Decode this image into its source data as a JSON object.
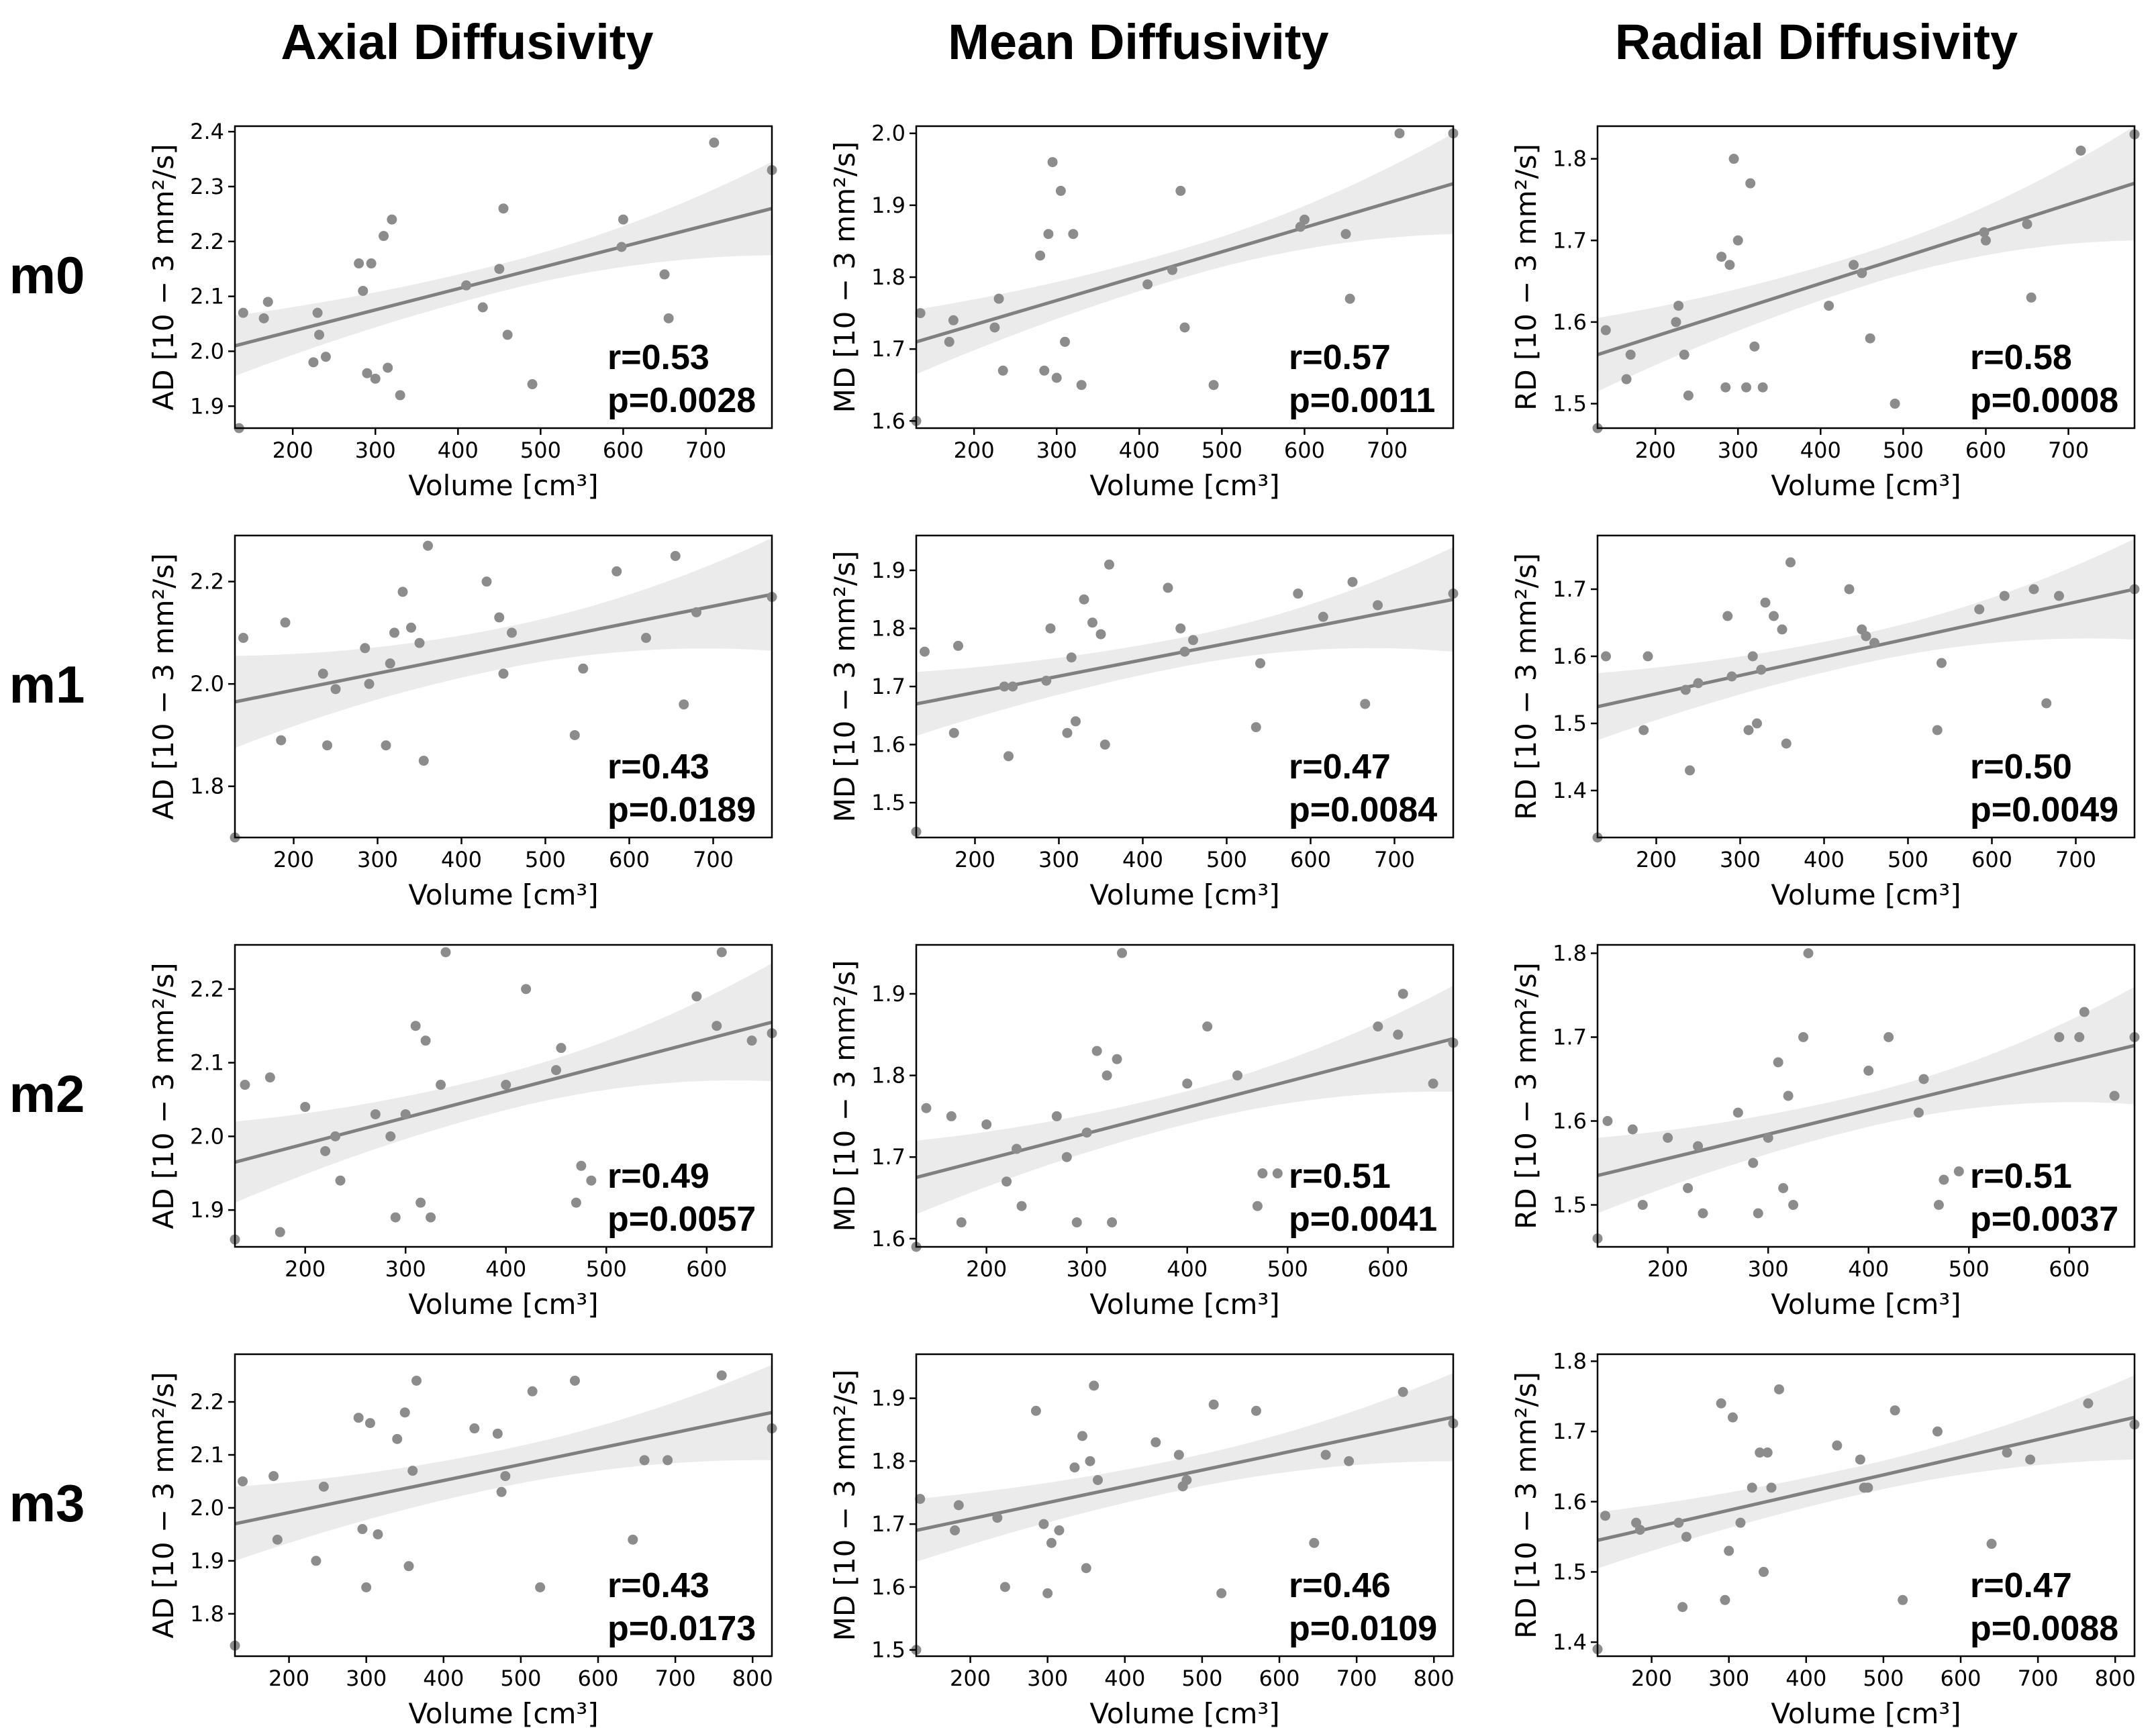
{
  "column_titles": [
    "Axial Diffusivity",
    "Mean Diffusivity",
    "Radial Diffusivity"
  ],
  "row_labels": [
    "m0",
    "m1",
    "m2",
    "m3"
  ],
  "colors": {
    "point": "#8c8c8c",
    "line": "#808080",
    "band": "#ebebeb",
    "axes": "#000000"
  },
  "chart_data": [
    {
      "id": "m0-AD",
      "type": "scatter",
      "title": "",
      "ylabel": "AD [10 − 3  mm²/s]",
      "xlabel": "Volume [cm³]",
      "xlim": [
        130,
        780
      ],
      "ylim": [
        1.86,
        2.41
      ],
      "xticks": [
        200,
        300,
        400,
        500,
        600,
        700
      ],
      "yticks": [
        1.9,
        2.0,
        2.1,
        2.2,
        2.3,
        2.4
      ],
      "ytick_labels": [
        "1.9",
        "2.0",
        "2.1",
        "2.2",
        "2.3",
        "2.4"
      ],
      "x": [
        135,
        140,
        165,
        170,
        225,
        230,
        232,
        240,
        280,
        285,
        290,
        295,
        300,
        310,
        315,
        320,
        330,
        410,
        430,
        450,
        455,
        460,
        490,
        598,
        600,
        650,
        655,
        710,
        780
      ],
      "y": [
        1.86,
        2.07,
        2.06,
        2.09,
        1.98,
        2.07,
        2.03,
        1.99,
        2.16,
        2.11,
        1.96,
        2.16,
        1.95,
        2.21,
        1.97,
        2.24,
        1.92,
        2.12,
        2.08,
        2.15,
        2.26,
        2.03,
        1.94,
        2.19,
        2.24,
        2.14,
        2.06,
        2.38,
        2.33
      ],
      "r": "r=0.53",
      "p": "p=0.0028",
      "fit": {
        "x": [
          130,
          780
        ],
        "y": [
          2.01,
          2.26
        ]
      },
      "ci_width": [
        0.055,
        0.025,
        0.085
      ]
    },
    {
      "id": "m0-MD",
      "type": "scatter",
      "title": "",
      "ylabel": "MD [10 − 3  mm²/s]",
      "xlabel": "Volume [cm³]",
      "xlim": [
        130,
        780
      ],
      "ylim": [
        1.59,
        2.01
      ],
      "xticks": [
        200,
        300,
        400,
        500,
        600,
        700
      ],
      "yticks": [
        1.6,
        1.7,
        1.8,
        1.9,
        2.0
      ],
      "ytick_labels": [
        "1.6",
        "1.7",
        "1.8",
        "1.9",
        "2.0"
      ],
      "x": [
        130,
        135,
        170,
        175,
        225,
        230,
        235,
        280,
        285,
        290,
        295,
        300,
        305,
        310,
        320,
        330,
        410,
        440,
        450,
        455,
        490,
        595,
        600,
        650,
        655,
        715,
        780
      ],
      "y": [
        1.6,
        1.75,
        1.71,
        1.74,
        1.73,
        1.77,
        1.67,
        1.83,
        1.67,
        1.86,
        1.96,
        1.66,
        1.92,
        1.71,
        1.86,
        1.65,
        1.79,
        1.81,
        1.92,
        1.73,
        1.65,
        1.87,
        1.88,
        1.86,
        1.77,
        2.0,
        2.0
      ],
      "r": "r=0.57",
      "p": "p=0.0011",
      "fit": {
        "x": [
          130,
          780
        ],
        "y": [
          1.71,
          1.93
        ]
      },
      "ci_width": [
        0.045,
        0.02,
        0.07
      ]
    },
    {
      "id": "m0-RD",
      "type": "scatter",
      "title": "",
      "ylabel": "RD [10 − 3  mm²/s]",
      "xlabel": "Volume [cm³]",
      "xlim": [
        130,
        780
      ],
      "ylim": [
        1.47,
        1.84
      ],
      "xticks": [
        200,
        300,
        400,
        500,
        600,
        700
      ],
      "yticks": [
        1.5,
        1.6,
        1.7,
        1.8
      ],
      "ytick_labels": [
        "1.5",
        "1.6",
        "1.7",
        "1.8"
      ],
      "x": [
        130,
        140,
        165,
        170,
        225,
        228,
        235,
        240,
        280,
        285,
        290,
        295,
        300,
        310,
        315,
        320,
        330,
        410,
        440,
        450,
        460,
        490,
        598,
        600,
        650,
        655,
        715,
        780
      ],
      "y": [
        1.47,
        1.59,
        1.53,
        1.56,
        1.6,
        1.62,
        1.56,
        1.51,
        1.68,
        1.52,
        1.67,
        1.8,
        1.7,
        1.52,
        1.77,
        1.57,
        1.52,
        1.62,
        1.67,
        1.66,
        1.58,
        1.5,
        1.71,
        1.7,
        1.72,
        1.63,
        1.81,
        1.83
      ],
      "r": "r=0.58",
      "p": "p=0.0008",
      "fit": {
        "x": [
          130,
          780
        ],
        "y": [
          1.56,
          1.77
        ]
      },
      "ci_width": [
        0.045,
        0.02,
        0.07
      ]
    },
    {
      "id": "m1-AD",
      "type": "scatter",
      "title": "",
      "ylabel": "AD [10 − 3  mm²/s]",
      "xlabel": "Volume [cm³]",
      "xlim": [
        130,
        770
      ],
      "ylim": [
        1.7,
        2.29
      ],
      "xticks": [
        200,
        300,
        400,
        500,
        600,
        700
      ],
      "yticks": [
        1.8,
        2.0,
        2.2
      ],
      "ytick_labels": [
        "1.8",
        "2.0",
        "2.2"
      ],
      "x": [
        130,
        140,
        185,
        190,
        235,
        240,
        250,
        285,
        290,
        310,
        315,
        320,
        330,
        340,
        350,
        355,
        360,
        430,
        445,
        450,
        460,
        535,
        545,
        585,
        620,
        655,
        665,
        680,
        770
      ],
      "y": [
        1.7,
        2.09,
        1.89,
        2.12,
        2.02,
        1.88,
        1.99,
        2.07,
        2.0,
        1.88,
        2.04,
        2.1,
        2.18,
        2.11,
        2.08,
        1.85,
        2.27,
        2.2,
        2.13,
        2.02,
        2.1,
        1.9,
        2.03,
        2.22,
        2.09,
        2.25,
        1.96,
        2.14,
        2.17
      ],
      "r": "r=0.43",
      "p": "p=0.0189",
      "fit": {
        "x": [
          130,
          770
        ],
        "y": [
          1.965,
          2.175
        ]
      },
      "ci_width": [
        0.09,
        0.04,
        0.11
      ]
    },
    {
      "id": "m1-MD",
      "type": "scatter",
      "title": "",
      "ylabel": "MD [10 − 3  mm²/s]",
      "xlabel": "Volume [cm³]",
      "xlim": [
        130,
        770
      ],
      "ylim": [
        1.44,
        1.96
      ],
      "xticks": [
        200,
        300,
        400,
        500,
        600,
        700
      ],
      "yticks": [
        1.5,
        1.6,
        1.7,
        1.8,
        1.9
      ],
      "ytick_labels": [
        "1.5",
        "1.6",
        "1.7",
        "1.8",
        "1.9"
      ],
      "x": [
        130,
        140,
        175,
        180,
        235,
        240,
        245,
        285,
        290,
        310,
        315,
        320,
        330,
        340,
        350,
        355,
        360,
        430,
        445,
        450,
        460,
        535,
        540,
        585,
        615,
        650,
        665,
        680,
        770
      ],
      "y": [
        1.45,
        1.76,
        1.62,
        1.77,
        1.7,
        1.58,
        1.7,
        1.71,
        1.8,
        1.62,
        1.75,
        1.64,
        1.85,
        1.81,
        1.79,
        1.6,
        1.91,
        1.87,
        1.8,
        1.76,
        1.78,
        1.63,
        1.74,
        1.86,
        1.82,
        1.88,
        1.67,
        1.84,
        1.86
      ],
      "r": "r=0.47",
      "p": "p=0.0084",
      "fit": {
        "x": [
          130,
          770
        ],
        "y": [
          1.67,
          1.85
        ]
      },
      "ci_width": [
        0.055,
        0.025,
        0.09
      ]
    },
    {
      "id": "m1-RD",
      "type": "scatter",
      "title": "",
      "ylabel": "RD [10 − 3  mm²/s]",
      "xlabel": "Volume [cm³]",
      "xlim": [
        130,
        770
      ],
      "ylim": [
        1.33,
        1.78
      ],
      "xticks": [
        200,
        300,
        400,
        500,
        600,
        700
      ],
      "yticks": [
        1.4,
        1.5,
        1.6,
        1.7
      ],
      "ytick_labels": [
        "1.4",
        "1.5",
        "1.6",
        "1.7"
      ],
      "x": [
        130,
        140,
        185,
        190,
        235,
        240,
        250,
        285,
        290,
        310,
        315,
        320,
        325,
        330,
        340,
        350,
        355,
        360,
        430,
        445,
        450,
        460,
        535,
        540,
        585,
        615,
        650,
        665,
        680,
        770
      ],
      "y": [
        1.33,
        1.6,
        1.49,
        1.6,
        1.55,
        1.43,
        1.56,
        1.66,
        1.57,
        1.49,
        1.6,
        1.5,
        1.58,
        1.68,
        1.66,
        1.64,
        1.47,
        1.74,
        1.7,
        1.64,
        1.63,
        1.62,
        1.49,
        1.59,
        1.67,
        1.69,
        1.7,
        1.53,
        1.69,
        1.7
      ],
      "r": "r=0.50",
      "p": "p=0.0049",
      "fit": {
        "x": [
          130,
          770
        ],
        "y": [
          1.525,
          1.7
        ]
      },
      "ci_width": [
        0.05,
        0.022,
        0.075
      ]
    },
    {
      "id": "m2-AD",
      "type": "scatter",
      "title": "",
      "ylabel": "AD [10 − 3  mm²/s]",
      "xlabel": "Volume [cm³]",
      "xlim": [
        130,
        665
      ],
      "ylim": [
        1.85,
        2.26
      ],
      "xticks": [
        200,
        300,
        400,
        500,
        600
      ],
      "yticks": [
        1.9,
        2.0,
        2.1,
        2.2
      ],
      "ytick_labels": [
        "1.9",
        "2.0",
        "2.1",
        "2.2"
      ],
      "x": [
        130,
        140,
        165,
        175,
        200,
        220,
        230,
        235,
        270,
        285,
        290,
        300,
        310,
        315,
        320,
        325,
        335,
        340,
        400,
        420,
        450,
        455,
        470,
        475,
        485,
        590,
        610,
        615,
        645,
        665
      ],
      "y": [
        1.86,
        2.07,
        2.08,
        1.87,
        2.04,
        1.98,
        2.0,
        1.94,
        2.03,
        2.0,
        1.89,
        2.03,
        2.15,
        1.91,
        2.13,
        1.89,
        2.07,
        2.25,
        2.07,
        2.2,
        2.09,
        2.12,
        1.91,
        1.96,
        1.94,
        2.19,
        2.15,
        2.25,
        2.13,
        2.14
      ],
      "r": "r=0.49",
      "p": "p=0.0057",
      "fit": {
        "x": [
          130,
          665
        ],
        "y": [
          1.965,
          2.155
        ]
      },
      "ci_width": [
        0.055,
        0.025,
        0.08
      ]
    },
    {
      "id": "m2-MD",
      "type": "scatter",
      "title": "",
      "ylabel": "MD [10 − 3  mm²/s]",
      "xlabel": "Volume [cm³]",
      "xlim": [
        130,
        665
      ],
      "ylim": [
        1.59,
        1.96
      ],
      "xticks": [
        200,
        300,
        400,
        500,
        600
      ],
      "yticks": [
        1.6,
        1.7,
        1.8,
        1.9
      ],
      "ytick_labels": [
        "1.6",
        "1.7",
        "1.8",
        "1.9"
      ],
      "x": [
        130,
        140,
        165,
        175,
        200,
        220,
        230,
        235,
        270,
        280,
        290,
        300,
        310,
        320,
        325,
        330,
        335,
        400,
        420,
        450,
        470,
        475,
        490,
        590,
        610,
        615,
        645,
        665
      ],
      "y": [
        1.59,
        1.76,
        1.75,
        1.62,
        1.74,
        1.67,
        1.71,
        1.64,
        1.75,
        1.7,
        1.62,
        1.73,
        1.83,
        1.8,
        1.62,
        1.82,
        1.95,
        1.79,
        1.86,
        1.8,
        1.64,
        1.68,
        1.68,
        1.86,
        1.85,
        1.9,
        1.79,
        1.84
      ],
      "r": "r=0.51",
      "p": "p=0.0041",
      "fit": {
        "x": [
          130,
          665
        ],
        "y": [
          1.675,
          1.845
        ]
      },
      "ci_width": [
        0.045,
        0.02,
        0.065
      ]
    },
    {
      "id": "m2-RD",
      "type": "scatter",
      "title": "",
      "ylabel": "RD [10 − 3  mm²/s]",
      "xlabel": "Volume [cm³]",
      "xlim": [
        130,
        665
      ],
      "ylim": [
        1.45,
        1.81
      ],
      "xticks": [
        200,
        300,
        400,
        500,
        600
      ],
      "yticks": [
        1.5,
        1.6,
        1.7,
        1.8
      ],
      "ytick_labels": [
        "1.5",
        "1.6",
        "1.7",
        "1.8"
      ],
      "x": [
        130,
        140,
        165,
        175,
        200,
        220,
        230,
        235,
        270,
        285,
        290,
        300,
        310,
        315,
        320,
        325,
        335,
        340,
        400,
        420,
        450,
        455,
        470,
        475,
        490,
        590,
        610,
        615,
        645,
        665
      ],
      "y": [
        1.46,
        1.6,
        1.59,
        1.5,
        1.58,
        1.52,
        1.57,
        1.49,
        1.61,
        1.55,
        1.49,
        1.58,
        1.67,
        1.52,
        1.63,
        1.5,
        1.7,
        1.8,
        1.66,
        1.7,
        1.61,
        1.65,
        1.5,
        1.53,
        1.54,
        1.7,
        1.7,
        1.73,
        1.63,
        1.7
      ],
      "r": "r=0.51",
      "p": "p=0.0037",
      "fit": {
        "x": [
          130,
          665
        ],
        "y": [
          1.535,
          1.69
        ]
      },
      "ci_width": [
        0.045,
        0.02,
        0.07
      ]
    },
    {
      "id": "m3-AD",
      "type": "scatter",
      "title": "",
      "ylabel": "AD [10 − 3  mm²/s]",
      "xlabel": "Volume [cm³]",
      "xlim": [
        130,
        825
      ],
      "ylim": [
        1.72,
        2.29
      ],
      "xticks": [
        200,
        300,
        400,
        500,
        600,
        700,
        800
      ],
      "yticks": [
        1.8,
        1.9,
        2.0,
        2.1,
        2.2
      ],
      "ytick_labels": [
        "1.8",
        "1.9",
        "2.0",
        "2.1",
        "2.2"
      ],
      "x": [
        130,
        140,
        180,
        185,
        235,
        245,
        290,
        295,
        300,
        305,
        315,
        340,
        350,
        355,
        360,
        365,
        440,
        470,
        475,
        480,
        515,
        525,
        570,
        645,
        660,
        690,
        760,
        825
      ],
      "y": [
        1.74,
        2.05,
        2.06,
        1.94,
        1.9,
        2.04,
        2.17,
        1.96,
        1.85,
        2.16,
        1.95,
        2.13,
        2.18,
        1.89,
        2.07,
        2.24,
        2.15,
        2.14,
        2.03,
        2.06,
        2.22,
        1.85,
        2.24,
        1.94,
        2.09,
        2.09,
        2.25,
        2.15
      ],
      "r": "r=0.43",
      "p": "p=0.0173",
      "fit": {
        "x": [
          130,
          825
        ],
        "y": [
          1.97,
          2.18
        ]
      },
      "ci_width": [
        0.07,
        0.035,
        0.09
      ]
    },
    {
      "id": "m3-MD",
      "type": "scatter",
      "title": "",
      "ylabel": "MD [10 − 3  mm²/s]",
      "xlabel": "Volume [cm³]",
      "xlim": [
        130,
        825
      ],
      "ylim": [
        1.49,
        1.97
      ],
      "xticks": [
        200,
        300,
        400,
        500,
        600,
        700,
        800
      ],
      "yticks": [
        1.5,
        1.6,
        1.7,
        1.8,
        1.9
      ],
      "ytick_labels": [
        "1.5",
        "1.6",
        "1.7",
        "1.8",
        "1.9"
      ],
      "x": [
        130,
        135,
        180,
        185,
        235,
        245,
        285,
        295,
        300,
        305,
        315,
        335,
        345,
        350,
        355,
        360,
        365,
        440,
        470,
        475,
        480,
        515,
        525,
        570,
        645,
        660,
        690,
        760,
        825
      ],
      "y": [
        1.5,
        1.74,
        1.69,
        1.73,
        1.71,
        1.6,
        1.88,
        1.7,
        1.59,
        1.67,
        1.69,
        1.79,
        1.84,
        1.63,
        1.8,
        1.92,
        1.77,
        1.83,
        1.81,
        1.76,
        1.77,
        1.89,
        1.59,
        1.88,
        1.67,
        1.81,
        1.8,
        1.91,
        1.86
      ],
      "r": "r=0.46",
      "p": "p=0.0109",
      "fit": {
        "x": [
          130,
          825
        ],
        "y": [
          1.69,
          1.87
        ]
      },
      "ci_width": [
        0.05,
        0.025,
        0.07
      ]
    },
    {
      "id": "m3-RD",
      "type": "scatter",
      "title": "",
      "ylabel": "RD [10 − 3  mm²/s]",
      "xlabel": "Volume [cm³]",
      "xlim": [
        130,
        825
      ],
      "ylim": [
        1.38,
        1.81
      ],
      "xticks": [
        200,
        300,
        400,
        500,
        600,
        700,
        800
      ],
      "yticks": [
        1.4,
        1.5,
        1.6,
        1.7,
        1.8
      ],
      "ytick_labels": [
        "1.4",
        "1.5",
        "1.6",
        "1.7",
        "1.8"
      ],
      "x": [
        130,
        140,
        180,
        185,
        235,
        240,
        245,
        290,
        295,
        300,
        305,
        315,
        330,
        340,
        345,
        350,
        355,
        365,
        440,
        470,
        475,
        480,
        515,
        525,
        570,
        640,
        660,
        690,
        765,
        825
      ],
      "y": [
        1.39,
        1.58,
        1.57,
        1.56,
        1.57,
        1.45,
        1.55,
        1.74,
        1.46,
        1.53,
        1.72,
        1.57,
        1.62,
        1.67,
        1.5,
        1.67,
        1.62,
        1.76,
        1.68,
        1.66,
        1.62,
        1.62,
        1.73,
        1.46,
        1.7,
        1.54,
        1.67,
        1.66,
        1.74,
        1.71
      ],
      "r": "r=0.47",
      "p": "p=0.0088",
      "fit": {
        "x": [
          130,
          825
        ],
        "y": [
          1.545,
          1.72
        ]
      },
      "ci_width": [
        0.04,
        0.02,
        0.06
      ]
    }
  ]
}
